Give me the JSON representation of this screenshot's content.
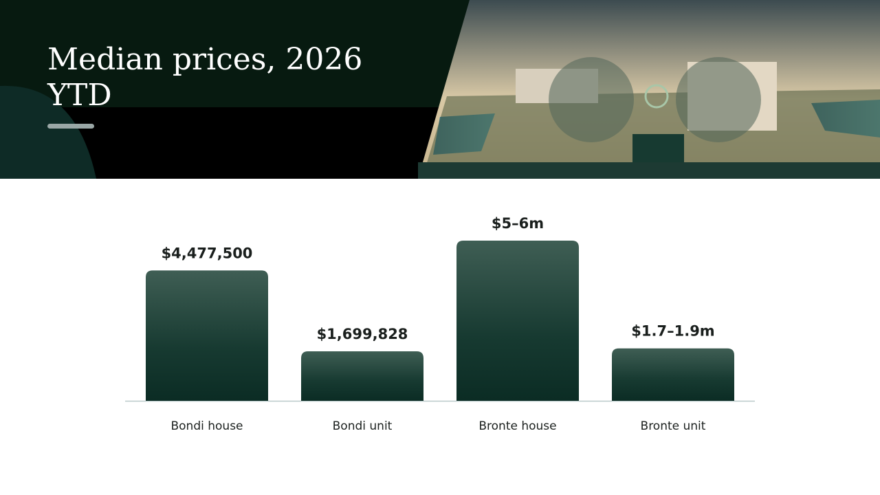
{
  "chart_data": {
    "type": "bar",
    "title": "Median prices, 2026 YTD",
    "categories": [
      "Bondi house",
      "Bondi unit",
      "Bronte house",
      "Bronte unit"
    ],
    "values": [
      4477500,
      1699828,
      5500000,
      1800000
    ],
    "value_labels": [
      "$4,477,500",
      "$1,699,828",
      "$5–6m",
      "$1.7–1.9m"
    ],
    "color": "#1e3f36"
  }
}
